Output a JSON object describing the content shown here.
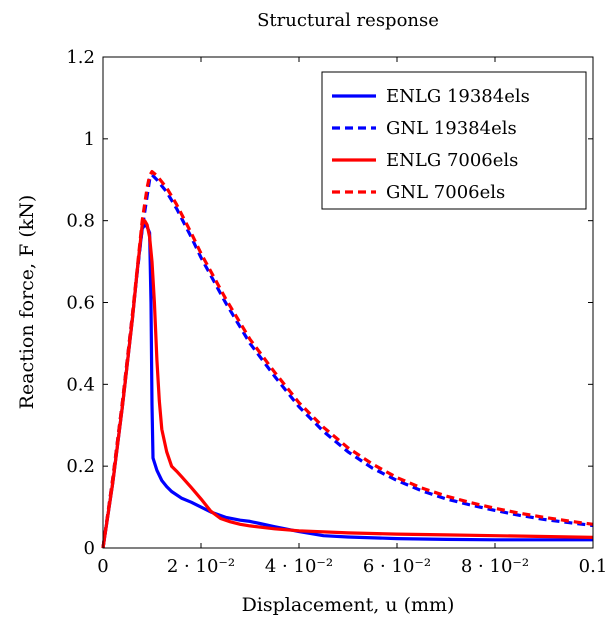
{
  "chart_data": {
    "type": "line",
    "title": "Structural response",
    "xlabel": "Displacement, u (mm)",
    "ylabel": "Reaction force, F (kN)",
    "xlim": [
      0,
      0.1
    ],
    "ylim": [
      0,
      1.2
    ],
    "grid": false,
    "legend_position": "top-right",
    "x_ticks": [
      {
        "value": 0,
        "label": "0"
      },
      {
        "value": 0.02,
        "label": "2 · 10⁻²"
      },
      {
        "value": 0.04,
        "label": "4 · 10⁻²"
      },
      {
        "value": 0.06,
        "label": "6 · 10⁻²"
      },
      {
        "value": 0.08,
        "label": "8 · 10⁻²"
      },
      {
        "value": 0.1,
        "label": "0.1"
      }
    ],
    "y_ticks": [
      {
        "value": 0,
        "label": "0"
      },
      {
        "value": 0.2,
        "label": "0.2"
      },
      {
        "value": 0.4,
        "label": "0.4"
      },
      {
        "value": 0.6,
        "label": "0.6"
      },
      {
        "value": 0.8,
        "label": "0.8"
      },
      {
        "value": 1.0,
        "label": "1"
      },
      {
        "value": 1.2,
        "label": "1.2"
      }
    ],
    "series": [
      {
        "name": "ENLG 19384els",
        "color": "#0000ff",
        "dash": "solid",
        "points": [
          [
            0,
            0
          ],
          [
            0.002,
            0.16
          ],
          [
            0.004,
            0.35
          ],
          [
            0.006,
            0.56
          ],
          [
            0.007,
            0.68
          ],
          [
            0.008,
            0.78
          ],
          [
            0.0085,
            0.79
          ],
          [
            0.009,
            0.785
          ],
          [
            0.0095,
            0.77
          ],
          [
            0.0098,
            0.6
          ],
          [
            0.01,
            0.35
          ],
          [
            0.0102,
            0.22
          ],
          [
            0.011,
            0.19
          ],
          [
            0.012,
            0.165
          ],
          [
            0.013,
            0.15
          ],
          [
            0.014,
            0.138
          ],
          [
            0.016,
            0.122
          ],
          [
            0.018,
            0.112
          ],
          [
            0.02,
            0.1
          ],
          [
            0.022,
            0.088
          ],
          [
            0.025,
            0.075
          ],
          [
            0.028,
            0.068
          ],
          [
            0.03,
            0.065
          ],
          [
            0.032,
            0.06
          ],
          [
            0.035,
            0.052
          ],
          [
            0.04,
            0.04
          ],
          [
            0.045,
            0.03
          ],
          [
            0.05,
            0.027
          ],
          [
            0.06,
            0.023
          ],
          [
            0.07,
            0.021
          ],
          [
            0.08,
            0.02
          ],
          [
            0.09,
            0.02
          ],
          [
            0.1,
            0.02
          ]
        ]
      },
      {
        "name": "GNL 19384els",
        "color": "#0000ff",
        "dash": "dashed",
        "points": [
          [
            0,
            0
          ],
          [
            0.002,
            0.17
          ],
          [
            0.004,
            0.36
          ],
          [
            0.006,
            0.57
          ],
          [
            0.008,
            0.78
          ],
          [
            0.009,
            0.86
          ],
          [
            0.0095,
            0.9
          ],
          [
            0.01,
            0.912
          ],
          [
            0.011,
            0.9
          ],
          [
            0.013,
            0.87
          ],
          [
            0.015,
            0.83
          ],
          [
            0.018,
            0.76
          ],
          [
            0.02,
            0.71
          ],
          [
            0.025,
            0.6
          ],
          [
            0.03,
            0.5
          ],
          [
            0.035,
            0.42
          ],
          [
            0.04,
            0.345
          ],
          [
            0.045,
            0.285
          ],
          [
            0.05,
            0.235
          ],
          [
            0.055,
            0.195
          ],
          [
            0.06,
            0.165
          ],
          [
            0.065,
            0.14
          ],
          [
            0.07,
            0.12
          ],
          [
            0.075,
            0.105
          ],
          [
            0.08,
            0.092
          ],
          [
            0.085,
            0.08
          ],
          [
            0.09,
            0.07
          ],
          [
            0.095,
            0.062
          ],
          [
            0.1,
            0.055
          ]
        ]
      },
      {
        "name": "ENLG 7006els",
        "color": "#ff0000",
        "dash": "solid",
        "points": [
          [
            0,
            0
          ],
          [
            0.002,
            0.16
          ],
          [
            0.004,
            0.35
          ],
          [
            0.006,
            0.56
          ],
          [
            0.007,
            0.68
          ],
          [
            0.008,
            0.79
          ],
          [
            0.0085,
            0.8
          ],
          [
            0.009,
            0.79
          ],
          [
            0.0095,
            0.76
          ],
          [
            0.01,
            0.7
          ],
          [
            0.0105,
            0.6
          ],
          [
            0.011,
            0.46
          ],
          [
            0.0115,
            0.36
          ],
          [
            0.012,
            0.29
          ],
          [
            0.013,
            0.235
          ],
          [
            0.014,
            0.2
          ],
          [
            0.015,
            0.188
          ],
          [
            0.016,
            0.175
          ],
          [
            0.018,
            0.148
          ],
          [
            0.02,
            0.12
          ],
          [
            0.022,
            0.09
          ],
          [
            0.024,
            0.072
          ],
          [
            0.026,
            0.064
          ],
          [
            0.028,
            0.058
          ],
          [
            0.03,
            0.054
          ],
          [
            0.035,
            0.047
          ],
          [
            0.04,
            0.042
          ],
          [
            0.05,
            0.037
          ],
          [
            0.06,
            0.034
          ],
          [
            0.07,
            0.032
          ],
          [
            0.08,
            0.03
          ],
          [
            0.09,
            0.028
          ],
          [
            0.1,
            0.026
          ]
        ]
      },
      {
        "name": "GNL 7006els",
        "color": "#ff0000",
        "dash": "dashed",
        "points": [
          [
            0,
            0
          ],
          [
            0.002,
            0.17
          ],
          [
            0.004,
            0.36
          ],
          [
            0.006,
            0.57
          ],
          [
            0.008,
            0.8
          ],
          [
            0.009,
            0.88
          ],
          [
            0.0095,
            0.91
          ],
          [
            0.01,
            0.92
          ],
          [
            0.011,
            0.91
          ],
          [
            0.013,
            0.88
          ],
          [
            0.015,
            0.84
          ],
          [
            0.018,
            0.77
          ],
          [
            0.02,
            0.72
          ],
          [
            0.025,
            0.61
          ],
          [
            0.03,
            0.51
          ],
          [
            0.035,
            0.43
          ],
          [
            0.04,
            0.355
          ],
          [
            0.045,
            0.295
          ],
          [
            0.05,
            0.245
          ],
          [
            0.055,
            0.205
          ],
          [
            0.06,
            0.172
          ],
          [
            0.065,
            0.147
          ],
          [
            0.07,
            0.127
          ],
          [
            0.075,
            0.111
          ],
          [
            0.08,
            0.097
          ],
          [
            0.085,
            0.085
          ],
          [
            0.09,
            0.075
          ],
          [
            0.095,
            0.066
          ],
          [
            0.1,
            0.058
          ]
        ]
      }
    ]
  }
}
